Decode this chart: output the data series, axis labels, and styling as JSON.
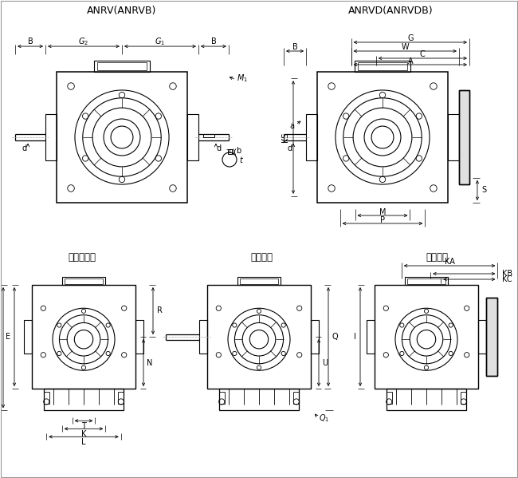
{
  "title_left": "ANRV(ANRVB)",
  "title_right": "ANRVD(ANRVDB)",
  "subtitle_1": "空心轴安装",
  "subtitle_2": "底脚安装",
  "subtitle_3": "法兰安装",
  "bg_color": "#ffffff",
  "line_color": "#000000",
  "gray_color": "#888888",
  "light_gray": "#cccccc"
}
